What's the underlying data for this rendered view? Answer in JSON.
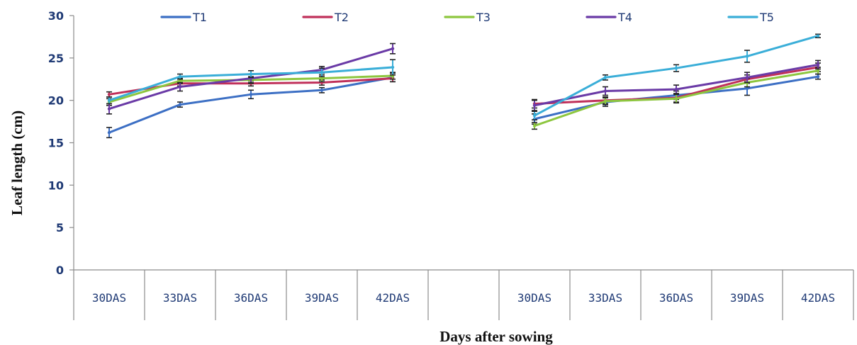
{
  "chart_data": {
    "type": "line",
    "xlabel": "Days after sowing",
    "ylabel": "Leaf length (cm)",
    "ylim": [
      0,
      30
    ],
    "yticks": [
      0,
      5,
      10,
      15,
      20,
      25,
      30
    ],
    "grid": false,
    "legend_position": "top",
    "groups": [
      {
        "categories": [
          "30DAS",
          "33DAS",
          "36DAS",
          "39DAS",
          "42DAS"
        ],
        "series": [
          {
            "name": "T1",
            "color": "#3c6fc4",
            "values": [
              16.2,
              19.5,
              20.7,
              21.2,
              22.7
            ],
            "errors": [
              0.6,
              0.3,
              0.5,
              0.3,
              0.5
            ]
          },
          {
            "name": "T2",
            "color": "#c0305a",
            "values": [
              20.7,
              22.0,
              22.0,
              22.1,
              22.6
            ],
            "errors": [
              0.3,
              0.3,
              0.3,
              0.3,
              0.4
            ]
          },
          {
            "name": "T3",
            "color": "#8dc63f",
            "values": [
              19.8,
              22.3,
              22.4,
              22.6,
              22.9
            ],
            "errors": [
              0.4,
              0.3,
              0.4,
              0.4,
              0.4
            ]
          },
          {
            "name": "T4",
            "color": "#6a3aa6",
            "values": [
              19.0,
              21.6,
              22.6,
              23.6,
              26.1
            ],
            "errors": [
              0.6,
              0.5,
              0.5,
              0.4,
              0.6
            ]
          },
          {
            "name": "T5",
            "color": "#3aaed8",
            "values": [
              20.0,
              22.8,
              23.1,
              23.3,
              23.9
            ],
            "errors": [
              0.4,
              0.3,
              0.4,
              0.5,
              0.9
            ]
          }
        ]
      },
      {
        "categories": [
          "30DAS",
          "33DAS",
          "36DAS",
          "39DAS",
          "42DAS"
        ],
        "series": [
          {
            "name": "T1",
            "color": "#3c6fc4",
            "values": [
              17.8,
              19.8,
              20.6,
              21.4,
              22.8
            ],
            "errors": [
              0.6,
              0.5,
              0.5,
              0.8,
              0.3
            ]
          },
          {
            "name": "T2",
            "color": "#c0305a",
            "values": [
              19.6,
              20.0,
              20.3,
              22.5,
              23.9
            ],
            "errors": [
              0.5,
              0.4,
              0.5,
              0.5,
              0.5
            ]
          },
          {
            "name": "T3",
            "color": "#8dc63f",
            "values": [
              17.0,
              19.9,
              20.2,
              22.1,
              23.5
            ],
            "errors": [
              0.4,
              0.4,
              0.5,
              0.5,
              0.4
            ]
          },
          {
            "name": "T4",
            "color": "#6a3aa6",
            "values": [
              19.4,
              21.1,
              21.3,
              22.7,
              24.2
            ],
            "errors": [
              0.6,
              0.5,
              0.5,
              0.6,
              0.5
            ]
          },
          {
            "name": "T5",
            "color": "#3aaed8",
            "values": [
              18.2,
              22.7,
              23.8,
              25.2,
              27.6
            ],
            "errors": [
              0.5,
              0.3,
              0.4,
              0.7,
              0.2
            ]
          }
        ]
      }
    ]
  }
}
